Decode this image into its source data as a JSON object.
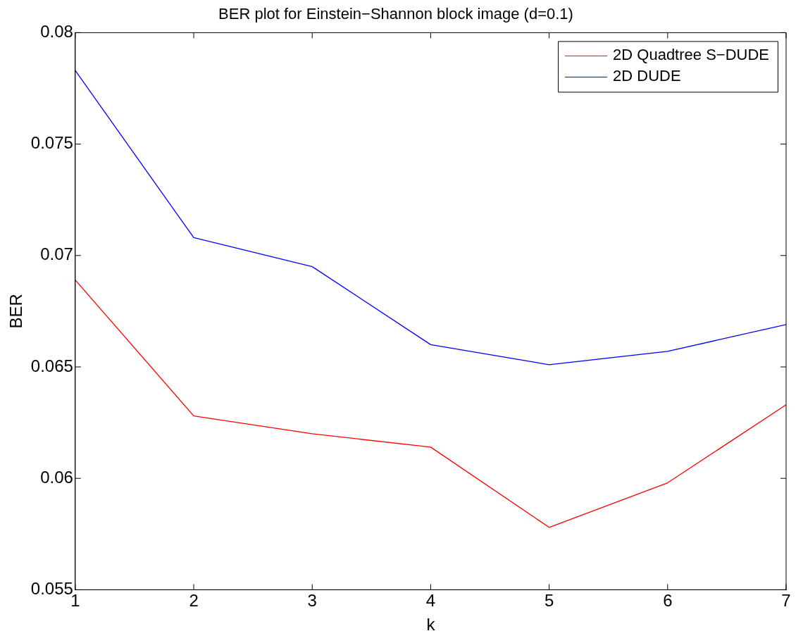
{
  "chart_data": {
    "type": "line",
    "title": "BER plot for Einstein−Shannon block image (d=0.1)",
    "xlabel": "k",
    "ylabel": "BER",
    "x": [
      1,
      2,
      3,
      4,
      5,
      6,
      7
    ],
    "series": [
      {
        "name": "2D Quadtree S−DUDE",
        "color": "#ff0000",
        "values": [
          0.0689,
          0.0628,
          0.062,
          0.0614,
          0.0578,
          0.0598,
          0.0633
        ]
      },
      {
        "name": "2D DUDE",
        "color": "#0000ff",
        "values": [
          0.0783,
          0.0708,
          0.0695,
          0.066,
          0.0651,
          0.0657,
          0.0669
        ]
      }
    ],
    "xlim": [
      1,
      7
    ],
    "xticks": [
      1,
      2,
      3,
      4,
      5,
      6,
      7
    ],
    "ylim": [
      0.055,
      0.08
    ],
    "yticks": [
      0.055,
      0.06,
      0.065,
      0.07,
      0.075,
      0.08
    ],
    "grid": false,
    "legend": "top right",
    "marker": "none",
    "line_style": "solid"
  }
}
